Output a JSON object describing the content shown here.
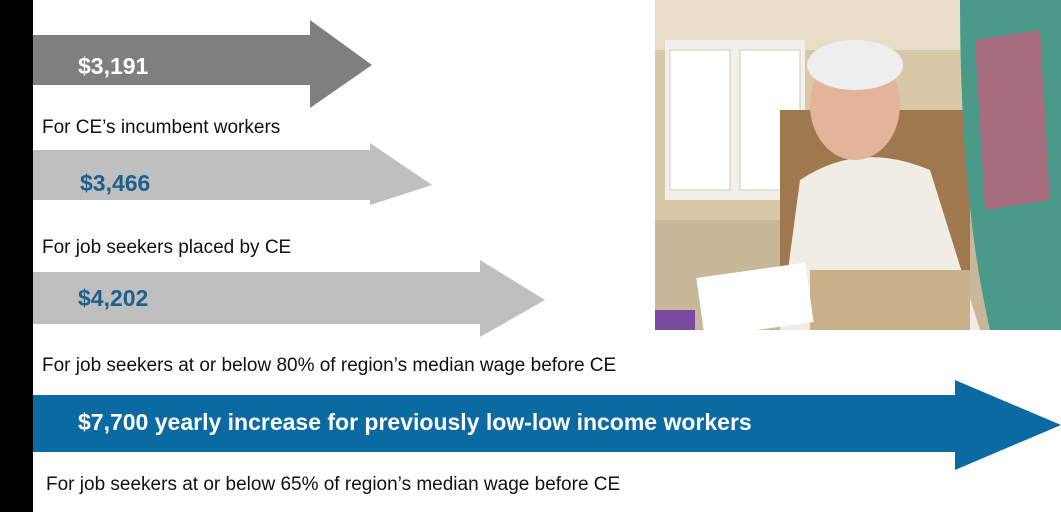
{
  "arrows": [
    {
      "value": "$3,191",
      "caption": "For CE’s incumbent workers"
    },
    {
      "value": "$3,466",
      "caption": "For job seekers placed by CE"
    },
    {
      "value": "$4,202",
      "caption": "For job seekers at or below 80% of region’s median wage before CE"
    },
    {
      "value": "$7,700 yearly increase for previously low-low income workers",
      "caption": "For job seekers at or below 65% of region’s median wage before CE"
    }
  ]
}
